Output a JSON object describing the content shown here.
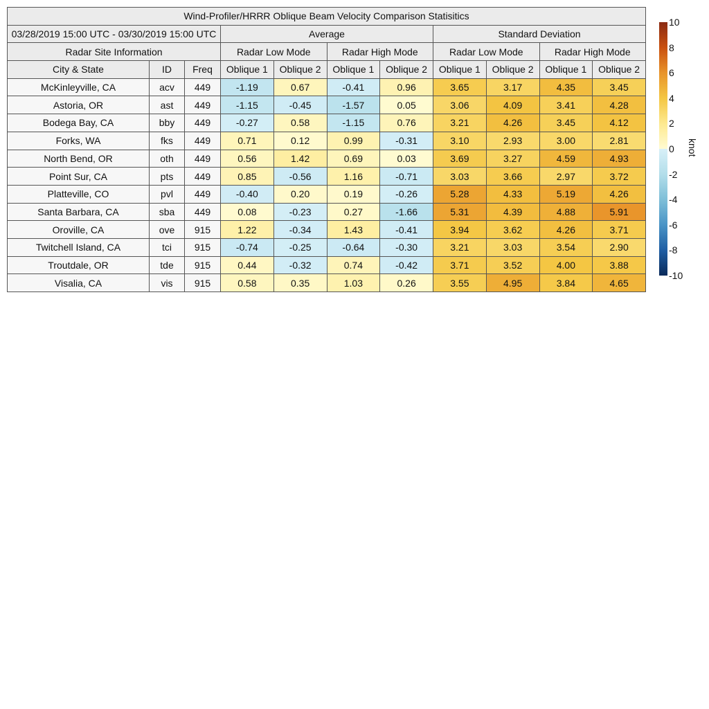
{
  "chart_data": {
    "type": "table",
    "title": "Wind-Profiler/HRRR Oblique Beam Velocity Comparison Statisitics",
    "date_range": "03/28/2019 15:00 UTC - 03/30/2019 15:00 UTC",
    "group_headers": {
      "site_info": "Radar Site Information",
      "average": "Average",
      "std": "Standard Deviation",
      "low": "Radar Low Mode",
      "high": "Radar High Mode"
    },
    "columns": [
      "City & State",
      "ID",
      "Freq",
      "Oblique 1",
      "Oblique 2",
      "Oblique 1",
      "Oblique 2",
      "Oblique 1",
      "Oblique 2",
      "Oblique 1",
      "Oblique 2"
    ],
    "rows": [
      [
        "McKinleyville, CA",
        "acv",
        "449",
        "-1.19",
        "0.67",
        "-0.41",
        "0.96",
        "3.65",
        "3.17",
        "4.35",
        "3.45"
      ],
      [
        "Astoria, OR",
        "ast",
        "449",
        "-1.15",
        "-0.45",
        "-1.57",
        "0.05",
        "3.06",
        "4.09",
        "3.41",
        "4.28"
      ],
      [
        "Bodega Bay, CA",
        "bby",
        "449",
        "-0.27",
        "0.58",
        "-1.15",
        "0.76",
        "3.21",
        "4.26",
        "3.45",
        "4.12"
      ],
      [
        "Forks, WA",
        "fks",
        "449",
        "0.71",
        "0.12",
        "0.99",
        "-0.31",
        "3.10",
        "2.93",
        "3.00",
        "2.81"
      ],
      [
        "North Bend, OR",
        "oth",
        "449",
        "0.56",
        "1.42",
        "0.69",
        "0.03",
        "3.69",
        "3.27",
        "4.59",
        "4.93"
      ],
      [
        "Point Sur, CA",
        "pts",
        "449",
        "0.85",
        "-0.56",
        "1.16",
        "-0.71",
        "3.03",
        "3.66",
        "2.97",
        "3.72"
      ],
      [
        "Platteville, CO",
        "pvl",
        "449",
        "-0.40",
        "0.20",
        "0.19",
        "-0.26",
        "5.28",
        "4.33",
        "5.19",
        "4.26"
      ],
      [
        "Santa Barbara, CA",
        "sba",
        "449",
        "0.08",
        "-0.23",
        "0.27",
        "-1.66",
        "5.31",
        "4.39",
        "4.88",
        "5.91"
      ],
      [
        "Oroville, CA",
        "ove",
        "915",
        "1.22",
        "-0.34",
        "1.43",
        "-0.41",
        "3.94",
        "3.62",
        "4.26",
        "3.71"
      ],
      [
        "Twitchell Island, CA",
        "tci",
        "915",
        "-0.74",
        "-0.25",
        "-0.64",
        "-0.30",
        "3.21",
        "3.03",
        "3.54",
        "2.90"
      ],
      [
        "Troutdale, OR",
        "tde",
        "915",
        "0.44",
        "-0.32",
        "0.74",
        "-0.42",
        "3.71",
        "3.52",
        "4.00",
        "3.88"
      ],
      [
        "Visalia, CA",
        "vis",
        "915",
        "0.58",
        "0.35",
        "1.03",
        "0.26",
        "3.55",
        "4.95",
        "3.84",
        "4.65"
      ]
    ],
    "colorbar": {
      "label": "knot",
      "range": [
        -10,
        10
      ],
      "ticks": [
        "10",
        "8",
        "6",
        "4",
        "2",
        "0",
        "-2",
        "-4",
        "-6",
        "-8",
        "-10"
      ],
      "colors_pos": [
        "#fffbd2",
        "#fde98f",
        "#f4c643",
        "#e8932a",
        "#c9500f",
        "#8a2a12"
      ],
      "colors_neg": [
        "#d8f0f8",
        "#b3deea",
        "#7fbfd8",
        "#4a94c6",
        "#1f5ea3",
        "#0a2a5a"
      ]
    }
  }
}
